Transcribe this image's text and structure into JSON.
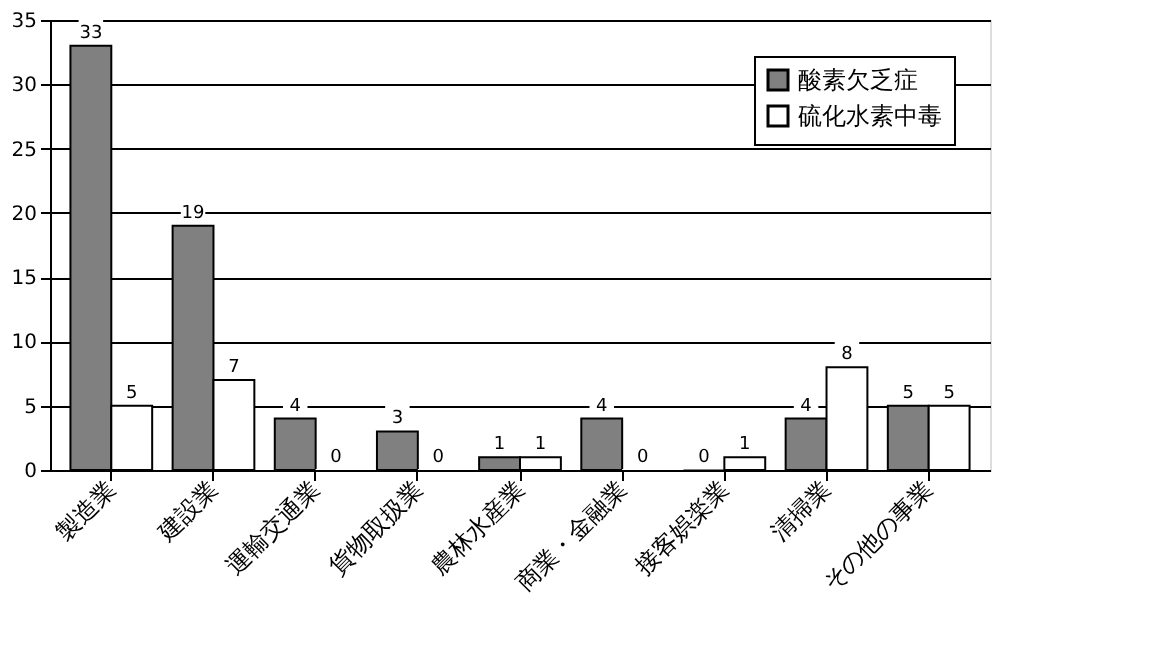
{
  "chart_data": {
    "type": "bar",
    "categories": [
      "製造業",
      "建設業",
      "運輸交通業",
      "貨物取扱業",
      "農林水産業",
      "商業・金融業",
      "接客娯楽業",
      "清掃業",
      "その他の事業"
    ],
    "series": [
      {
        "name": "酸素欠乏症",
        "color": "#808080",
        "values": [
          33,
          19,
          4,
          3,
          1,
          4,
          0,
          4,
          5
        ]
      },
      {
        "name": "硫化水素中毒",
        "color": "#ffffff",
        "values": [
          5,
          7,
          0,
          0,
          1,
          0,
          1,
          8,
          5
        ]
      }
    ],
    "ylim": [
      0,
      35
    ],
    "yticks": [
      0,
      5,
      10,
      15,
      20,
      25,
      30,
      35
    ],
    "grid": "y",
    "legend": "top right",
    "data_labels": true
  }
}
